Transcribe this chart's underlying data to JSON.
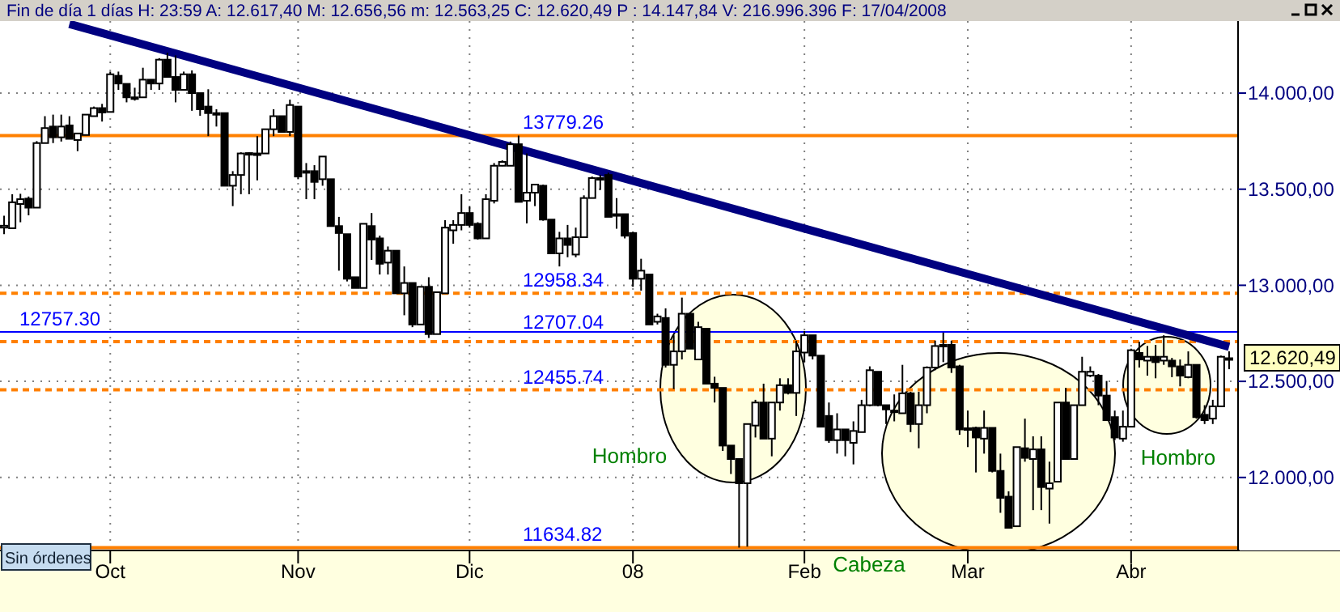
{
  "chart_data": {
    "type": "candlestick",
    "title": "Fin de día 1 días H: 23:59 A: 12.617,40 M: 12.656,56 m: 12.563,25 C: 12.620,49 P : 14.147,84 V: 216.996.396 F: 17/04/2008",
    "color": "#000000",
    "categories": [
      null,
      null,
      null,
      null,
      null,
      null,
      null,
      null,
      null,
      null,
      null,
      null,
      null,
      "Oct",
      null,
      null,
      null,
      null,
      null,
      null,
      null,
      null,
      null,
      null,
      null,
      null,
      null,
      null,
      null,
      null,
      null,
      null,
      null,
      null,
      null,
      null,
      "Nov",
      null,
      null,
      null,
      null,
      null,
      null,
      null,
      null,
      null,
      null,
      null,
      null,
      null,
      null,
      null,
      null,
      null,
      null,
      null,
      null,
      "Dic",
      null,
      null,
      null,
      null,
      null,
      null,
      null,
      null,
      null,
      null,
      null,
      null,
      null,
      null,
      null,
      null,
      null,
      null,
      null,
      "08",
      null,
      null,
      null,
      null,
      null,
      null,
      null,
      null,
      null,
      null,
      null,
      null,
      null,
      null,
      null,
      null,
      null,
      null,
      null,
      null,
      "Feb",
      null,
      null,
      null,
      null,
      null,
      null,
      null,
      null,
      null,
      null,
      null,
      null,
      null,
      null,
      null,
      null,
      null,
      null,
      null,
      "Mar",
      null,
      null,
      null,
      null,
      null,
      null,
      null,
      null,
      null,
      null,
      null,
      null,
      null,
      null,
      null,
      null,
      null,
      null,
      null,
      "Abr",
      null,
      null,
      null,
      null,
      null,
      null,
      null,
      null,
      null,
      null,
      null,
      null
    ],
    "ohlc": [
      [
        13300,
        13362,
        13266,
        13310
      ],
      [
        13297,
        13474,
        13297,
        13432
      ],
      [
        13423,
        13476,
        13328,
        13448
      ],
      [
        13451,
        13462,
        13364,
        13404
      ],
      [
        13404,
        13750,
        13404,
        13740
      ],
      [
        13740,
        13880,
        13740,
        13818
      ],
      [
        13826,
        13888,
        13740,
        13770
      ],
      [
        13770,
        13888,
        13748,
        13826
      ],
      [
        13832,
        13880,
        13762,
        13762
      ],
      [
        13756,
        13790,
        13698,
        13790
      ],
      [
        13782,
        13888,
        13782,
        13888
      ],
      [
        13880,
        13930,
        13880,
        13922
      ],
      [
        13922,
        13944,
        13852,
        13899
      ],
      [
        13902,
        14112,
        13902,
        14098
      ],
      [
        14090,
        14112,
        14017,
        14050
      ],
      [
        14048,
        14048,
        13952,
        13978
      ],
      [
        13978,
        14028,
        13961,
        13975
      ],
      [
        13978,
        14132,
        13978,
        14070
      ],
      [
        14070,
        14070,
        14017,
        14050
      ],
      [
        14050,
        14182,
        14017,
        14174
      ],
      [
        14174,
        14210,
        14084,
        14084
      ],
      [
        14084,
        14196,
        13952,
        14017
      ],
      [
        14017,
        14112,
        14017,
        14098
      ],
      [
        14098,
        14118,
        13908,
        14000
      ],
      [
        14000,
        14000,
        13882,
        13916
      ],
      [
        13930,
        14020,
        13776,
        13896
      ],
      [
        13896,
        13916,
        13826,
        13892
      ],
      [
        13896,
        13896,
        13518,
        13518
      ],
      [
        13518,
        13594,
        13412,
        13574
      ],
      [
        13574,
        13692,
        13474,
        13686
      ],
      [
        13686,
        13692,
        13474,
        13688
      ],
      [
        13680,
        13776,
        13546,
        13686
      ],
      [
        13686,
        13812,
        13686,
        13812
      ],
      [
        13812,
        13916,
        13776,
        13880
      ],
      [
        13880,
        13880,
        13798,
        13798
      ],
      [
        13798,
        13966,
        13776,
        13938
      ],
      [
        13930,
        13930,
        13552,
        13566
      ],
      [
        13594,
        13636,
        13448,
        13590
      ],
      [
        13594,
        13625,
        13448,
        13538
      ],
      [
        13552,
        13670,
        13518,
        13670
      ],
      [
        13552,
        13552,
        13308,
        13308
      ],
      [
        13308,
        13356,
        13076,
        13272
      ],
      [
        13266,
        13266,
        13020,
        13034
      ],
      [
        13042,
        13042,
        12986,
        12986
      ],
      [
        12986,
        13320,
        12986,
        13320
      ],
      [
        13308,
        13376,
        13132,
        13238
      ],
      [
        13244,
        13258,
        13056,
        13112
      ],
      [
        13118,
        13202,
        13056,
        13180
      ],
      [
        13180,
        13180,
        12958,
        12958
      ],
      [
        12958,
        13098,
        12844,
        13012
      ],
      [
        13012,
        13012,
        12782,
        12796
      ],
      [
        12796,
        12992,
        12796,
        12992
      ],
      [
        12992,
        13042,
        12726,
        12746
      ],
      [
        12746,
        12964,
        12746,
        12964
      ],
      [
        12958,
        13339,
        12958,
        13300
      ],
      [
        13286,
        13339,
        13216,
        13314
      ],
      [
        13314,
        13474,
        13286,
        13376
      ],
      [
        13376,
        13412,
        13300,
        13314
      ],
      [
        13320,
        13328,
        13238,
        13244
      ],
      [
        13244,
        13474,
        13244,
        13448
      ],
      [
        13440,
        13636,
        13426,
        13622
      ],
      [
        13622,
        13650,
        13620,
        13642
      ],
      [
        13622,
        13748,
        13622,
        13734
      ],
      [
        13734,
        13779,
        13434,
        13434
      ],
      [
        13440,
        13686,
        13322,
        13482
      ],
      [
        13482,
        13524,
        13412,
        13524
      ],
      [
        13518,
        13524,
        13336,
        13342
      ],
      [
        13342,
        13342,
        13166,
        13166
      ],
      [
        13166,
        13278,
        13098,
        13244
      ],
      [
        13244,
        13314,
        13146,
        13210
      ],
      [
        13160,
        13300,
        13146,
        13250
      ],
      [
        13250,
        13468,
        13250,
        13454
      ],
      [
        13454,
        13566,
        13454,
        13558
      ],
      [
        13558,
        13574,
        13496,
        13556
      ],
      [
        13574,
        13586,
        13356,
        13356
      ],
      [
        13370,
        13454,
        13294,
        13366
      ],
      [
        13370,
        13370,
        13244,
        13258
      ],
      [
        13272,
        13278,
        12992,
        13034
      ],
      [
        13034,
        13138,
        12972,
        13076
      ],
      [
        13056,
        13056,
        12796,
        12796
      ],
      [
        12810,
        12852,
        12796,
        12838
      ],
      [
        12830,
        12880,
        12572,
        12586
      ],
      [
        12586,
        12740,
        12460,
        12656
      ],
      [
        12656,
        12936,
        12614,
        12852
      ],
      [
        12852,
        12852,
        12670,
        12670
      ],
      [
        12614,
        12810,
        12614,
        12782
      ],
      [
        12774,
        12774,
        12488,
        12488
      ],
      [
        12488,
        12524,
        12390,
        12466
      ],
      [
        12466,
        12466,
        12138,
        12166
      ],
      [
        12166,
        12166,
        12018,
        12096
      ],
      [
        12096,
        12096,
        11635,
        11970
      ],
      [
        11970,
        12278,
        11640,
        12278
      ],
      [
        12270,
        12404,
        12208,
        12390
      ],
      [
        12390,
        12488,
        12202,
        12202
      ],
      [
        12202,
        12390,
        12110,
        12390
      ],
      [
        12390,
        12516,
        12348,
        12480
      ],
      [
        12480,
        12516,
        12432,
        12440
      ],
      [
        12440,
        12712,
        12320,
        12656
      ],
      [
        12650,
        12762,
        12600,
        12740
      ],
      [
        12740,
        12740,
        12614,
        12634
      ],
      [
        12634,
        12634,
        12264,
        12264
      ],
      [
        12320,
        12390,
        12180,
        12194
      ],
      [
        12194,
        12334,
        12124,
        12250
      ],
      [
        12250,
        12250,
        12110,
        12194
      ],
      [
        12180,
        12292,
        12068,
        12242
      ],
      [
        12236,
        12404,
        12236,
        12376
      ],
      [
        12376,
        12578,
        12370,
        12558
      ],
      [
        12550,
        12550,
        12370,
        12376
      ],
      [
        12376,
        12376,
        12278,
        12354
      ],
      [
        12348,
        12432,
        12292,
        12346
      ],
      [
        12334,
        12586,
        12334,
        12438
      ],
      [
        12438,
        12446,
        12236,
        12278
      ],
      [
        12278,
        12446,
        12152,
        12376
      ],
      [
        12376,
        12578,
        12334,
        12572
      ],
      [
        12572,
        12712,
        12558,
        12684
      ],
      [
        12690,
        12754,
        12600,
        12688
      ],
      [
        12690,
        12712,
        12544,
        12572
      ],
      [
        12578,
        12586,
        12222,
        12250
      ],
      [
        12256,
        12348,
        12158,
        12250
      ],
      [
        12258,
        12264,
        12026,
        12208
      ],
      [
        12202,
        12348,
        12124,
        12258
      ],
      [
        12258,
        12258,
        12026,
        12034
      ],
      [
        12034,
        12124,
        11816,
        11894
      ],
      [
        11900,
        11928,
        11738,
        11738
      ],
      [
        11746,
        12158,
        11746,
        12158
      ],
      [
        12152,
        12306,
        12082,
        12102
      ],
      [
        12096,
        12214,
        11830,
        12146
      ],
      [
        12146,
        12214,
        11830,
        11950
      ],
      [
        11942,
        12082,
        11760,
        11970
      ],
      [
        11978,
        12390,
        11978,
        12390
      ],
      [
        12390,
        12466,
        12096,
        12096
      ],
      [
        12096,
        12376,
        12096,
        12376
      ],
      [
        12376,
        12628,
        12376,
        12550
      ],
      [
        12530,
        12578,
        12522,
        12550
      ],
      [
        12530,
        12538,
        12376,
        12426
      ],
      [
        12426,
        12502,
        12298,
        12298
      ],
      [
        12314,
        12348,
        12194,
        12208
      ],
      [
        12202,
        12348,
        12186,
        12264
      ],
      [
        12264,
        12670,
        12264,
        12662
      ],
      [
        12648,
        12706,
        12572,
        12614
      ],
      [
        12608,
        12684,
        12530,
        12628
      ],
      [
        12628,
        12690,
        12516,
        12600
      ],
      [
        12608,
        12740,
        12586,
        12628
      ],
      [
        12608,
        12622,
        12522,
        12578
      ],
      [
        12578,
        12614,
        12474,
        12530
      ],
      [
        12522,
        12656,
        12516,
        12586
      ],
      [
        12586,
        12586,
        12306,
        12314
      ],
      [
        12326,
        12376,
        12278,
        12298
      ],
      [
        12306,
        12404,
        12278,
        12370
      ],
      [
        12370,
        12634,
        12370,
        12628
      ],
      [
        12617.4,
        12656.56,
        12563.25,
        12620.49
      ]
    ],
    "series": [
      {
        "type": "line",
        "color": "#000080",
        "values": [
          null,
          null,
          null,
          null,
          null,
          null,
          null,
          null,
          14360,
          null,
          null,
          null,
          null,
          null,
          null,
          null,
          null,
          null,
          null,
          null,
          null,
          null,
          null,
          null,
          null,
          null,
          null,
          null,
          null,
          null,
          null,
          null,
          null,
          null,
          null,
          null,
          null,
          null,
          null,
          null,
          null,
          null,
          null,
          null,
          null,
          null,
          null,
          null,
          null,
          null,
          null,
          null,
          null,
          null,
          null,
          null,
          null,
          null,
          null,
          null,
          null,
          null,
          null,
          null,
          null,
          null,
          null,
          null,
          null,
          null,
          null,
          null,
          null,
          null,
          null,
          null,
          null,
          null,
          null,
          null,
          null,
          null,
          null,
          null,
          null,
          null,
          null,
          null,
          null,
          null,
          null,
          null,
          null,
          null,
          null,
          null,
          null,
          null,
          null,
          null,
          null,
          null,
          null,
          null,
          null,
          null,
          null,
          null,
          null,
          null,
          null,
          null,
          null,
          null,
          null,
          null,
          null,
          null,
          null,
          null,
          null,
          null,
          null,
          null,
          null,
          null,
          null,
          null,
          null,
          null,
          null,
          null,
          null,
          null,
          null,
          null,
          null,
          null,
          null,
          null,
          null,
          null,
          null,
          null,
          null,
          null,
          null,
          null,
          null,
          null,
          12680
        ]
      }
    ],
    "ylim": [
      11620,
      14375
    ],
    "yticks": [
      {
        "value": 12000,
        "label": "12.000,00"
      },
      {
        "value": 12500,
        "label": "12.500,00"
      },
      {
        "value": 13000,
        "label": "13.000,00"
      },
      {
        "value": 13500,
        "label": "13.500,00"
      },
      {
        "value": 14000,
        "label": "14.000,00"
      }
    ],
    "grid": true,
    "ref_lines": [
      {
        "axis": "y",
        "value": 12757.3,
        "label": "12757.30",
        "color": "#0000ff",
        "line_style": "solid"
      },
      {
        "axis": "y",
        "value": 13779.26,
        "label": "13779.26",
        "color": "#ff8000",
        "line_style": "solid"
      },
      {
        "axis": "y",
        "value": 12958.34,
        "label": "12958.34",
        "color": "#ff8000",
        "line_style": "dashed"
      },
      {
        "axis": "y",
        "value": 12707.04,
        "label": "12707.04",
        "color": "#ff8000",
        "line_style": "dashed"
      },
      {
        "axis": "y",
        "value": 12455.74,
        "label": "12455.74",
        "color": "#ff8000",
        "line_style": "dashed"
      },
      {
        "axis": "y",
        "value": 11634.82,
        "label": "11634.82",
        "color": "#ff8000",
        "line_style": "solid"
      }
    ],
    "annotations": [
      "Hombro",
      "Cabeza",
      "Hombro",
      "Sin órdenes",
      "12.620,49"
    ]
  }
}
